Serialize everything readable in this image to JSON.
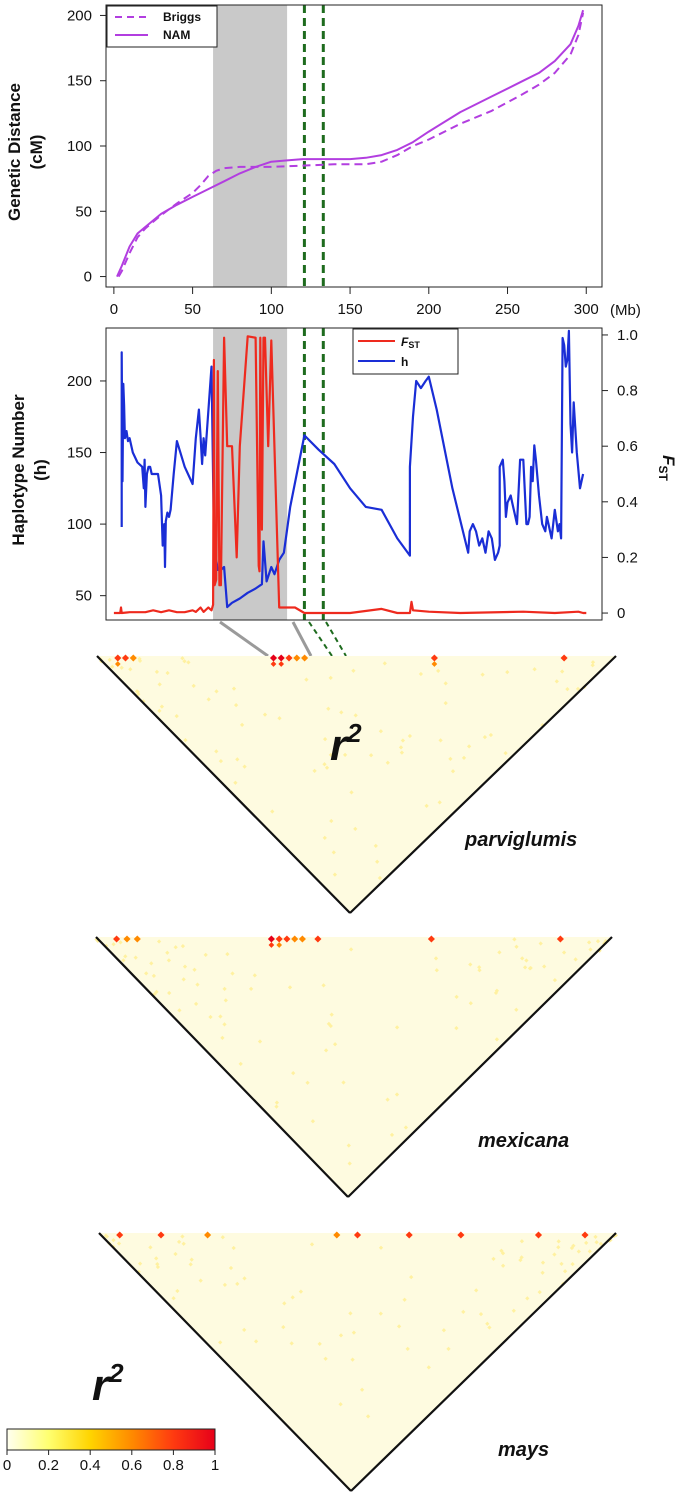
{
  "colors": {
    "briggs": "#b23ee0",
    "nam": "#b23ee0",
    "fst": "#ee2a1e",
    "h": "#1a2ed6",
    "shade": "#c9c9c9",
    "green_lines": "#1e6b1e",
    "heatmap_bg": "#fefbe0"
  },
  "chart_data": [
    {
      "type": "line",
      "panel": "genetic-map",
      "ylabel_line1": "Genetic Distance",
      "ylabel_line2": "(cM)",
      "x_unit": "(Mb)",
      "xlim": [
        -5,
        310
      ],
      "ylim": [
        -8,
        208
      ],
      "x_ticks": [
        0,
        50,
        100,
        150,
        200,
        250,
        300
      ],
      "y_ticks": [
        0,
        50,
        100,
        150,
        200
      ],
      "shaded_region": [
        63,
        110
      ],
      "green_dashed_x": [
        121,
        133
      ],
      "legend": [
        "Briggs",
        "NAM"
      ],
      "series": [
        {
          "name": "Briggs",
          "style": "dashed",
          "x": [
            3,
            5,
            10,
            15,
            20,
            30,
            40,
            50,
            55,
            60,
            65,
            70,
            80,
            100,
            120,
            140,
            160,
            170,
            180,
            190,
            200,
            220,
            240,
            260,
            270,
            280,
            290,
            295,
            298
          ],
          "y": [
            0,
            4,
            18,
            30,
            37,
            47,
            56,
            64,
            70,
            77,
            81,
            83,
            84,
            84,
            85,
            86,
            86,
            88,
            93,
            100,
            105,
            117,
            127,
            140,
            147,
            156,
            170,
            185,
            202
          ]
        },
        {
          "name": "NAM",
          "style": "solid",
          "x": [
            2,
            5,
            10,
            15,
            20,
            30,
            40,
            50,
            55,
            60,
            70,
            80,
            90,
            100,
            110,
            120,
            140,
            150,
            160,
            170,
            180,
            190,
            200,
            220,
            240,
            260,
            270,
            280,
            290,
            295,
            298
          ],
          "y": [
            0,
            8,
            23,
            33,
            38,
            48,
            55,
            61,
            64,
            67,
            73,
            79,
            84,
            88,
            89,
            90,
            90,
            90,
            91,
            93,
            97,
            103,
            111,
            126,
            138,
            150,
            156,
            165,
            178,
            192,
            204
          ]
        }
      ]
    },
    {
      "type": "line",
      "panel": "haplotype-fst",
      "ylabel_line1": "Haplotype Number",
      "ylabel_line2": "(h)",
      "y2label_main": "F",
      "y2label_sub": "ST",
      "xlim": [
        -5,
        310
      ],
      "ylim": [
        33,
        237
      ],
      "y2lim": [
        -0.025,
        1.025
      ],
      "y_ticks": [
        50,
        100,
        150,
        200
      ],
      "y2_ticks": [
        0,
        0.2,
        0.4,
        0.6,
        0.8,
        1.0
      ],
      "y2_tick_labels": [
        "0",
        "0.2",
        "0.4",
        "0.6",
        "0.8",
        "1.0"
      ],
      "shaded_region": [
        63,
        110
      ],
      "green_dashed_x": [
        121,
        133
      ],
      "legend": [
        {
          "main": "F",
          "sub": "ST"
        },
        {
          "main": "h",
          "sub": ""
        }
      ],
      "series": [
        {
          "name": "h",
          "axis": "left",
          "x": [
            5,
            5,
            5.5,
            6,
            6.5,
            7,
            8,
            9,
            10,
            12,
            15,
            18,
            19,
            19.5,
            20,
            21,
            22,
            23,
            24,
            28,
            30,
            31,
            32,
            32.5,
            33,
            34,
            35,
            36,
            38,
            40,
            45,
            50,
            52,
            54,
            55,
            56,
            57,
            58,
            62,
            64,
            65,
            66,
            68,
            70,
            72,
            75,
            80,
            85,
            90,
            94,
            95,
            97,
            100,
            102,
            105,
            108,
            112,
            121,
            130,
            140,
            150,
            160,
            170,
            180,
            188,
            188,
            190,
            192,
            195,
            198,
            200,
            205,
            215,
            225,
            226,
            228,
            230,
            232,
            234,
            236,
            238,
            240,
            242,
            244,
            245,
            245,
            247,
            248,
            249,
            250,
            252,
            253,
            254,
            256,
            258,
            260,
            262,
            263,
            264,
            265,
            266,
            267,
            268,
            270,
            272,
            274,
            275,
            276,
            278,
            279,
            280,
            282,
            283,
            284,
            285,
            286,
            287,
            288,
            289,
            290,
            291,
            292,
            294,
            296,
            298
          ],
          "y": [
            98,
            220,
            130,
            198,
            183,
            160,
            165,
            158,
            160,
            150,
            143,
            140,
            125,
            145,
            112,
            135,
            140,
            140,
            135,
            135,
            120,
            85,
            100,
            70,
            102,
            108,
            105,
            110,
            135,
            158,
            140,
            128,
            160,
            180,
            162,
            142,
            160,
            148,
            210,
            60,
            75,
            68,
            68,
            70,
            42,
            45,
            48,
            52,
            55,
            58,
            88,
            60,
            70,
            65,
            75,
            80,
            112,
            162,
            152,
            142,
            125,
            112,
            110,
            90,
            78,
            140,
            175,
            200,
            195,
            200,
            203,
            180,
            125,
            80,
            95,
            100,
            95,
            85,
            90,
            80,
            95,
            90,
            75,
            80,
            85,
            140,
            145,
            130,
            105,
            115,
            120,
            115,
            110,
            100,
            145,
            145,
            100,
            100,
            105,
            140,
            130,
            155,
            145,
            120,
            100,
            95,
            105,
            100,
            90,
            100,
            110,
            95,
            100,
            90,
            230,
            225,
            210,
            215,
            235,
            170,
            150,
            185,
            150,
            125,
            135
          ]
        },
        {
          "name": "FST",
          "axis": "right",
          "x": [
            0,
            4,
            4.5,
            5,
            10,
            20,
            25,
            30,
            35,
            40,
            45,
            50,
            52,
            55,
            57,
            60,
            62,
            63,
            63.5,
            64,
            65,
            66,
            67,
            68,
            70,
            72,
            75,
            78,
            80,
            85,
            90,
            92,
            92.5,
            93,
            94,
            95,
            96,
            98,
            100,
            105,
            108,
            110,
            115,
            121,
            150,
            170,
            180,
            188,
            189,
            190,
            200,
            220,
            260,
            280,
            295,
            298,
            300
          ],
          "y": [
            0,
            0,
            0.02,
            0,
            0.003,
            0.003,
            0.01,
            0.003,
            0.01,
            0.003,
            0.003,
            0.01,
            0.004,
            0.02,
            0.004,
            0.02,
            0.01,
            0.03,
            0.91,
            0.1,
            0.12,
            0.87,
            0.1,
            0.1,
            0.99,
            0.6,
            0.6,
            0.2,
            0.6,
            0.995,
            0.99,
            0.17,
            0.15,
            0.99,
            0.3,
            0.99,
            0.99,
            0.6,
            0.98,
            0.02,
            0.02,
            0.02,
            0.02,
            0,
            0,
            0.015,
            0,
            0,
            0.04,
            0.01,
            0.005,
            0,
            0.005,
            0,
            0.005,
            0,
            0
          ]
        }
      ]
    },
    {
      "type": "heatmap",
      "panel": "ld-parviglumis",
      "population": "parviglumis",
      "value_label": "r",
      "value_label_sup": "2",
      "hotspots": [
        {
          "pos": 0.04,
          "r2": 0.85
        },
        {
          "pos": 0.055,
          "r2": 0.7
        },
        {
          "pos": 0.07,
          "r2": 0.55
        },
        {
          "pos": 0.34,
          "r2": 0.95
        },
        {
          "pos": 0.355,
          "r2": 0.9
        },
        {
          "pos": 0.37,
          "r2": 0.8
        },
        {
          "pos": 0.385,
          "r2": 0.6
        },
        {
          "pos": 0.4,
          "r2": 0.5
        },
        {
          "pos": 0.65,
          "r2": 0.85
        },
        {
          "pos": 0.9,
          "r2": 0.7
        }
      ]
    },
    {
      "type": "heatmap",
      "panel": "ld-mexicana",
      "population": "mexicana",
      "hotspots": [
        {
          "pos": 0.04,
          "r2": 0.8
        },
        {
          "pos": 0.06,
          "r2": 0.6
        },
        {
          "pos": 0.08,
          "r2": 0.5
        },
        {
          "pos": 0.34,
          "r2": 0.95
        },
        {
          "pos": 0.355,
          "r2": 0.85
        },
        {
          "pos": 0.37,
          "r2": 0.75
        },
        {
          "pos": 0.385,
          "r2": 0.65
        },
        {
          "pos": 0.4,
          "r2": 0.6
        },
        {
          "pos": 0.43,
          "r2": 0.7
        },
        {
          "pos": 0.65,
          "r2": 0.75
        },
        {
          "pos": 0.9,
          "r2": 0.7
        }
      ]
    },
    {
      "type": "heatmap",
      "panel": "ld-mays",
      "population": "mays",
      "hotspots": [
        {
          "pos": 0.04,
          "r2": 0.7
        },
        {
          "pos": 0.12,
          "r2": 0.75
        },
        {
          "pos": 0.21,
          "r2": 0.6
        },
        {
          "pos": 0.46,
          "r2": 0.6
        },
        {
          "pos": 0.5,
          "r2": 0.7
        },
        {
          "pos": 0.6,
          "r2": 0.7
        },
        {
          "pos": 0.7,
          "r2": 0.8
        },
        {
          "pos": 0.85,
          "r2": 0.85
        },
        {
          "pos": 0.94,
          "r2": 0.7
        }
      ]
    },
    {
      "type": "colorbar",
      "panel": "r2-legend",
      "label": "r",
      "label_sup": "2",
      "range": [
        0,
        1
      ],
      "ticks": [
        0,
        0.2,
        0.4,
        0.6,
        0.8,
        1
      ],
      "tick_labels": [
        "0",
        "0.2",
        "0.4",
        "0.6",
        "0.8",
        "1"
      ],
      "stops": [
        "#fffff0",
        "#ffff70",
        "#ffd400",
        "#ff8a00",
        "#ff3a10",
        "#e6001a"
      ]
    }
  ]
}
